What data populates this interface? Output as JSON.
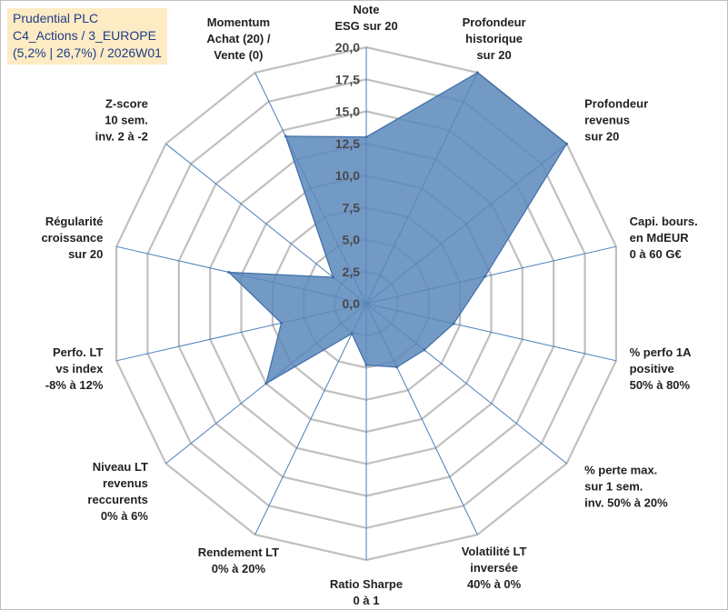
{
  "header": {
    "line1": "Prudential PLC",
    "line2": "C4_Actions / 3_EUROPE",
    "line3": "(5,2% | 26,7%) / 2026W01"
  },
  "colors": {
    "grid": "#c0c0c0",
    "spoke": "#4a7ebf",
    "fill": "#5b87bb",
    "stroke": "#3f6ea8",
    "header_bg": "#fdebc4",
    "header_text": "#1f3c88"
  },
  "chart_data": {
    "type": "radar",
    "rmin": 0,
    "rmax": 20,
    "tick_step": 2.5,
    "tick_labels": [
      "0,0",
      "2,5",
      "5,0",
      "7,5",
      "10,0",
      "12,5",
      "15,0",
      "17,5",
      "20,0"
    ],
    "axes": [
      {
        "lines": [
          "Note",
          "ESG sur 20"
        ],
        "value": 13
      },
      {
        "lines": [
          "Profondeur",
          "historique",
          "sur 20"
        ],
        "value": 20
      },
      {
        "lines": [
          "Profondeur",
          "revenus",
          "sur 20"
        ],
        "value": 20
      },
      {
        "lines": [
          "Capi. bours.",
          "en MdEUR",
          "0 à 60 G€"
        ],
        "value": 9.5
      },
      {
        "lines": [
          "% perfo 1A",
          "positive",
          "50% à 80%"
        ],
        "value": 7
      },
      {
        "lines": [
          "% perte max.",
          "sur 1 sem.",
          "inv. 50% à 20%"
        ],
        "value": 5.8
      },
      {
        "lines": [
          "Volatilité LT",
          "inversée",
          "40% à 0%"
        ],
        "value": 5.5
      },
      {
        "lines": [
          "Ratio Sharpe",
          "0 à 1"
        ],
        "value": 4.8
      },
      {
        "lines": [
          "Rendement LT",
          "0% à 20%"
        ],
        "value": 2.6
      },
      {
        "lines": [
          "Niveau LT",
          "revenus",
          "reccurents",
          "0% à 6%"
        ],
        "value": 10
      },
      {
        "lines": [
          "Perfo. LT",
          "vs index",
          "-8% à 12%"
        ],
        "value": 6.8
      },
      {
        "lines": [
          "Régularité",
          "croissance",
          "sur 20"
        ],
        "value": 11
      },
      {
        "lines": [
          "Z-score",
          "10 sem.",
          "inv. 2 à -2"
        ],
        "value": 3.3
      },
      {
        "lines": [
          "Momentum",
          "Achat (20) /",
          "Vente (0)"
        ],
        "value": 14.5
      }
    ]
  }
}
